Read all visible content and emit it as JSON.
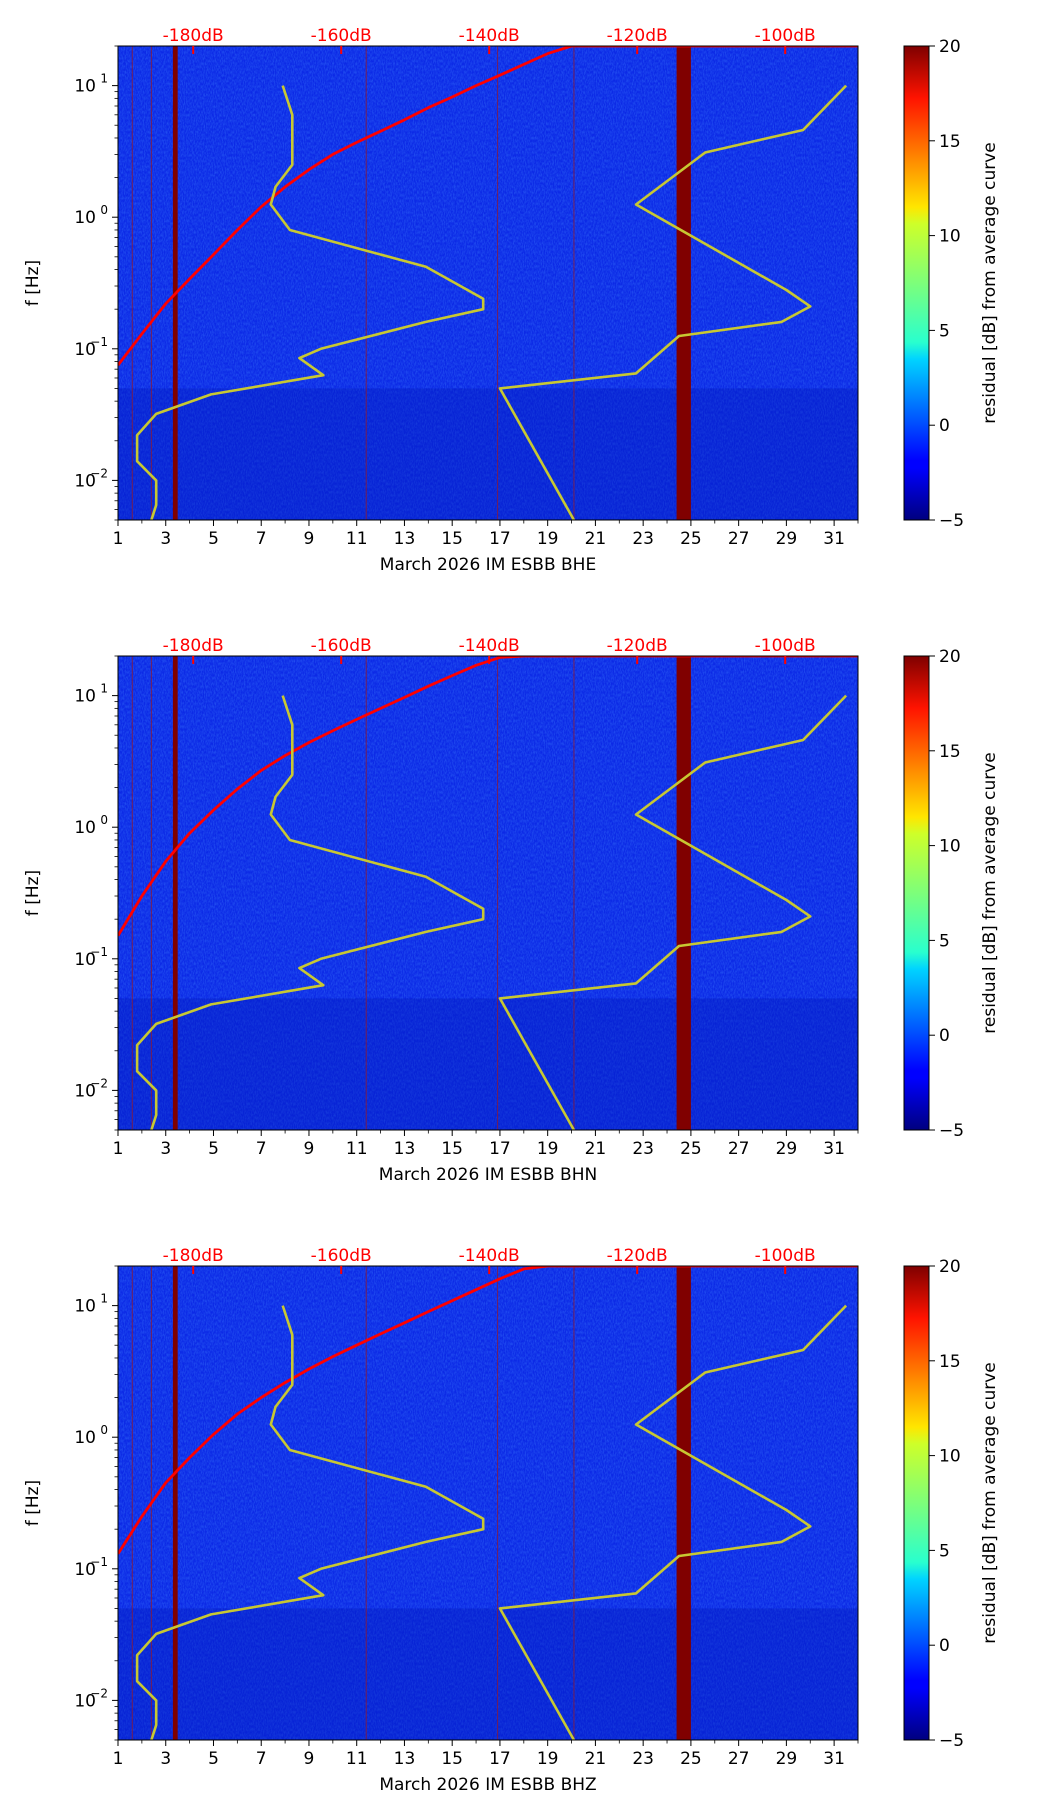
{
  "chart_data": [
    {
      "type": "heatmap",
      "channel": "BHE",
      "xlabel": "March 2026 IM ESBB  BHE",
      "ylabel": "f [Hz]",
      "xlim": [
        1,
        32
      ],
      "ylim": [
        0.005,
        20
      ],
      "yscale": "log",
      "x_ticks": [
        "1",
        "3",
        "5",
        "7",
        "9",
        "11",
        "13",
        "15",
        "17",
        "19",
        "21",
        "23",
        "25",
        "27",
        "29",
        "31"
      ],
      "y_tick_labels": [
        {
          "base": "10",
          "exp": "1",
          "value": 10
        },
        {
          "base": "10",
          "exp": "0",
          "value": 1
        },
        {
          "base": "10",
          "exp": "−1",
          "value": 0.1
        },
        {
          "base": "10",
          "exp": "−2",
          "value": 0.01
        }
      ],
      "top_axis_ticks": [
        {
          "label": "-180dB",
          "x": 4.15
        },
        {
          "label": "-160dB",
          "x": 10.35
        },
        {
          "label": "-140dB",
          "x": 16.55
        },
        {
          "label": "-120dB",
          "x": 22.75
        },
        {
          "label": "-100dB",
          "x": 28.95
        }
      ],
      "colorbar": {
        "label": "residual [dB] from average curve",
        "range": [
          -5,
          20
        ],
        "ticks": [
          "20",
          "15",
          "10",
          "5",
          "0",
          "−5"
        ],
        "tick_values": [
          20,
          15,
          10,
          5,
          0,
          -5
        ]
      },
      "highlight_columns": [
        {
          "x0": 24.4,
          "x1": 25.0
        },
        {
          "x0": 3.3,
          "x1": 3.5
        }
      ],
      "faint_columns": [
        1.6,
        2.4,
        11.4,
        16.9,
        20.1
      ],
      "series": [
        {
          "name": "average PSD curve",
          "color": "#ff0000",
          "x": [
            1,
            2,
            3,
            4,
            5,
            6,
            7,
            8,
            9,
            10,
            11,
            12,
            13,
            14,
            15,
            16,
            17,
            18,
            19,
            20,
            21,
            22,
            23,
            24,
            25,
            26,
            27,
            28,
            29,
            30,
            31,
            32
          ],
          "y": [
            0.075,
            0.13,
            0.22,
            0.34,
            0.52,
            0.8,
            1.2,
            1.7,
            2.3,
            3.0,
            3.7,
            4.5,
            5.5,
            6.8,
            8.2,
            10.0,
            12.0,
            14.5,
            17.5,
            20,
            20,
            20,
            20,
            20,
            20,
            20,
            20,
            20,
            20,
            20,
            20,
            20
          ]
        },
        {
          "name": "low noise model",
          "color": "#c8c832",
          "x": [
            7.9,
            8.3,
            8.3,
            7.6,
            7.4,
            8.2,
            13.9,
            16.3,
            16.3,
            13.9,
            9.5,
            8.6,
            9.6,
            4.9,
            2.6,
            1.8,
            1.8,
            2.6,
            2.6,
            2.4
          ],
          "y": [
            10,
            6,
            2.5,
            1.7,
            1.25,
            0.8,
            0.42,
            0.24,
            0.2,
            0.16,
            0.1,
            0.085,
            0.063,
            0.045,
            0.032,
            0.022,
            0.014,
            0.01,
            0.0065,
            0.005
          ]
        },
        {
          "name": "high noise model",
          "color": "#c8c832",
          "x": [
            31.5,
            29.7,
            25.6,
            22.7,
            29.0,
            30.0,
            28.8,
            24.5,
            22.7,
            17.0,
            20.1
          ],
          "y": [
            10,
            4.6,
            3.1,
            1.25,
            0.28,
            0.21,
            0.16,
            0.125,
            0.065,
            0.05,
            0.005
          ]
        }
      ]
    },
    {
      "type": "heatmap",
      "channel": "BHN",
      "xlabel": "March 2026 IM ESBB  BHN",
      "ylabel": "f [Hz]",
      "xlim": [
        1,
        32
      ],
      "ylim": [
        0.005,
        20
      ],
      "yscale": "log",
      "x_ticks": [
        "1",
        "3",
        "5",
        "7",
        "9",
        "11",
        "13",
        "15",
        "17",
        "19",
        "21",
        "23",
        "25",
        "27",
        "29",
        "31"
      ],
      "y_tick_labels": [
        {
          "base": "10",
          "exp": "1",
          "value": 10
        },
        {
          "base": "10",
          "exp": "0",
          "value": 1
        },
        {
          "base": "10",
          "exp": "−1",
          "value": 0.1
        },
        {
          "base": "10",
          "exp": "−2",
          "value": 0.01
        }
      ],
      "top_axis_ticks": [
        {
          "label": "-180dB",
          "x": 4.15
        },
        {
          "label": "-160dB",
          "x": 10.35
        },
        {
          "label": "-140dB",
          "x": 16.55
        },
        {
          "label": "-120dB",
          "x": 22.75
        },
        {
          "label": "-100dB",
          "x": 28.95
        }
      ],
      "colorbar": {
        "label": "residual [dB] from average curve",
        "range": [
          -5,
          20
        ],
        "ticks": [
          "20",
          "15",
          "10",
          "5",
          "0",
          "−5"
        ],
        "tick_values": [
          20,
          15,
          10,
          5,
          0,
          -5
        ]
      },
      "highlight_columns": [
        {
          "x0": 24.4,
          "x1": 25.0
        },
        {
          "x0": 3.3,
          "x1": 3.5
        }
      ],
      "faint_columns": [
        1.6,
        2.4,
        11.4,
        16.9,
        20.1
      ],
      "series": [
        {
          "name": "average PSD curve",
          "color": "#ff0000",
          "x": [
            1,
            2,
            3,
            4,
            5,
            6,
            7,
            8,
            9,
            10,
            11,
            12,
            13,
            14,
            15,
            16,
            17,
            18,
            19,
            20,
            21,
            22,
            23,
            24,
            25,
            26,
            27,
            28,
            29,
            30,
            31,
            32
          ],
          "y": [
            0.15,
            0.3,
            0.55,
            0.9,
            1.35,
            1.95,
            2.7,
            3.5,
            4.4,
            5.4,
            6.6,
            8.0,
            9.7,
            11.8,
            14.2,
            17.0,
            19.5,
            20,
            20,
            20,
            20,
            20,
            20,
            20,
            20,
            20,
            20,
            20,
            20,
            20,
            20,
            20
          ]
        },
        {
          "name": "low noise model",
          "color": "#c8c832",
          "x": [
            7.9,
            8.3,
            8.3,
            7.6,
            7.4,
            8.2,
            13.9,
            16.3,
            16.3,
            13.9,
            9.5,
            8.6,
            9.6,
            4.9,
            2.6,
            1.8,
            1.8,
            2.6,
            2.6,
            2.4
          ],
          "y": [
            10,
            6,
            2.5,
            1.7,
            1.25,
            0.8,
            0.42,
            0.24,
            0.2,
            0.16,
            0.1,
            0.085,
            0.063,
            0.045,
            0.032,
            0.022,
            0.014,
            0.01,
            0.0065,
            0.005
          ]
        },
        {
          "name": "high noise model",
          "color": "#c8c832",
          "x": [
            31.5,
            29.7,
            25.6,
            22.7,
            29.0,
            30.0,
            28.8,
            24.5,
            22.7,
            17.0,
            20.1
          ],
          "y": [
            10,
            4.6,
            3.1,
            1.25,
            0.28,
            0.21,
            0.16,
            0.125,
            0.065,
            0.05,
            0.005
          ]
        }
      ]
    },
    {
      "type": "heatmap",
      "channel": "BHZ",
      "xlabel": "March 2026 IM ESBB  BHZ",
      "ylabel": "f [Hz]",
      "xlim": [
        1,
        32
      ],
      "ylim": [
        0.005,
        20
      ],
      "yscale": "log",
      "x_ticks": [
        "1",
        "3",
        "5",
        "7",
        "9",
        "11",
        "13",
        "15",
        "17",
        "19",
        "21",
        "23",
        "25",
        "27",
        "29",
        "31"
      ],
      "y_tick_labels": [
        {
          "base": "10",
          "exp": "1",
          "value": 10
        },
        {
          "base": "10",
          "exp": "0",
          "value": 1
        },
        {
          "base": "10",
          "exp": "−1",
          "value": 0.1
        },
        {
          "base": "10",
          "exp": "−2",
          "value": 0.01
        }
      ],
      "top_axis_ticks": [
        {
          "label": "-180dB",
          "x": 4.15
        },
        {
          "label": "-160dB",
          "x": 10.35
        },
        {
          "label": "-140dB",
          "x": 16.55
        },
        {
          "label": "-120dB",
          "x": 22.75
        },
        {
          "label": "-100dB",
          "x": 28.95
        }
      ],
      "colorbar": {
        "label": "residual [dB] from average curve",
        "range": [
          -5,
          20
        ],
        "ticks": [
          "20",
          "15",
          "10",
          "5",
          "0",
          "−5"
        ],
        "tick_values": [
          20,
          15,
          10,
          5,
          0,
          -5
        ]
      },
      "highlight_columns": [
        {
          "x0": 24.4,
          "x1": 25.0
        },
        {
          "x0": 3.3,
          "x1": 3.5
        }
      ],
      "faint_columns": [
        1.6,
        2.4,
        11.4,
        16.9,
        20.1
      ],
      "series": [
        {
          "name": "average PSD curve",
          "color": "#ff0000",
          "x": [
            1,
            2,
            3,
            4,
            5,
            6,
            7,
            8,
            9,
            10,
            11,
            12,
            13,
            14,
            15,
            16,
            17,
            18,
            19,
            20,
            21,
            22,
            23,
            24,
            25,
            26,
            27,
            28,
            29,
            30,
            31,
            32
          ],
          "y": [
            0.13,
            0.25,
            0.45,
            0.7,
            1.05,
            1.5,
            2.0,
            2.6,
            3.3,
            4.1,
            5.0,
            6.1,
            7.4,
            9.0,
            10.9,
            13.2,
            16.0,
            19.0,
            20,
            20,
            20,
            20,
            20,
            20,
            20,
            20,
            20,
            20,
            20,
            20,
            20,
            20
          ]
        },
        {
          "name": "low noise model",
          "color": "#c8c832",
          "x": [
            7.9,
            8.3,
            8.3,
            7.6,
            7.4,
            8.2,
            13.9,
            16.3,
            16.3,
            13.9,
            9.5,
            8.6,
            9.6,
            4.9,
            2.6,
            1.8,
            1.8,
            2.6,
            2.6,
            2.4
          ],
          "y": [
            10,
            6,
            2.5,
            1.7,
            1.25,
            0.8,
            0.42,
            0.24,
            0.2,
            0.16,
            0.1,
            0.085,
            0.063,
            0.045,
            0.032,
            0.022,
            0.014,
            0.01,
            0.0065,
            0.005
          ]
        },
        {
          "name": "high noise model",
          "color": "#c8c832",
          "x": [
            31.5,
            29.7,
            25.6,
            22.7,
            29.0,
            30.0,
            28.8,
            24.5,
            22.7,
            17.0,
            20.1
          ],
          "y": [
            10,
            4.6,
            3.1,
            1.25,
            0.28,
            0.21,
            0.16,
            0.125,
            0.065,
            0.05,
            0.005
          ]
        }
      ]
    }
  ]
}
